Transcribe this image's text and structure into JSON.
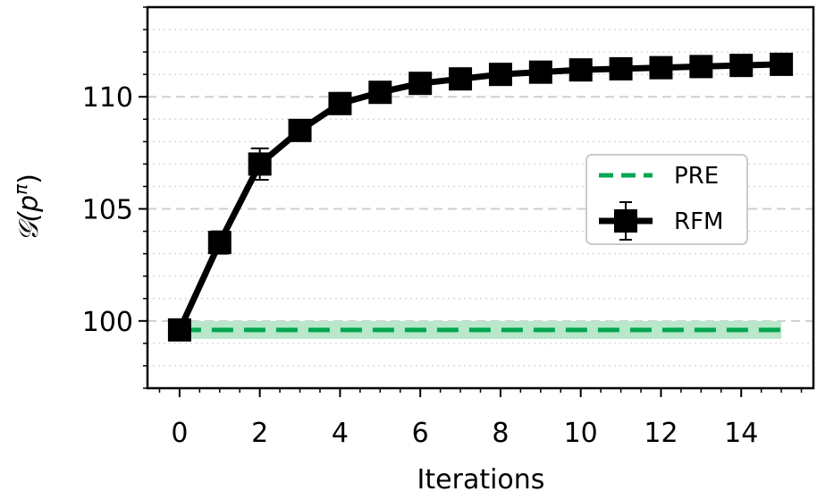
{
  "chart_data": {
    "type": "line",
    "xlabel": "Iterations",
    "ylabel": "𝒢(p^π)",
    "ylabel_main": "𝒢(p",
    "ylabel_sup": "π",
    "ylabel_close": ")",
    "xlim": [
      -0.8,
      15.8
    ],
    "ylim": [
      97,
      114
    ],
    "xticks": [
      0,
      2,
      4,
      6,
      8,
      10,
      12,
      14
    ],
    "xtick_labels": [
      "0",
      "2",
      "4",
      "6",
      "8",
      "10",
      "12",
      "14"
    ],
    "yticks": [
      100,
      105,
      110
    ],
    "ytick_labels": [
      "100",
      "105",
      "110"
    ],
    "grid": {
      "major_y": "dashed",
      "minor_y": "dotted"
    },
    "legend": {
      "placement": "center-right",
      "entries": [
        {
          "name": "PRE",
          "color": "#00a651",
          "style": "dashed"
        },
        {
          "name": "RFM",
          "color": "#000000",
          "style": "solid-square-markers"
        }
      ]
    },
    "series": [
      {
        "name": "RFM",
        "color": "#000000",
        "x": [
          0,
          1,
          2,
          3,
          4,
          5,
          6,
          7,
          8,
          9,
          10,
          11,
          12,
          13,
          14,
          15
        ],
        "y": [
          99.6,
          103.5,
          107.0,
          108.5,
          109.7,
          110.2,
          110.6,
          110.8,
          111.0,
          111.1,
          111.2,
          111.25,
          111.3,
          111.35,
          111.4,
          111.45
        ],
        "yerr": [
          0.15,
          0.5,
          0.7,
          0.3,
          0.2,
          0.15,
          0.15,
          0.1,
          0.1,
          0.1,
          0.1,
          0.1,
          0.1,
          0.1,
          0.1,
          0.1
        ]
      },
      {
        "name": "PRE",
        "color": "#00a651",
        "band_color": "#b8e8c9",
        "x": [
          0,
          15
        ],
        "y": [
          99.6,
          99.6
        ],
        "band": [
          99.2,
          100.0
        ]
      }
    ]
  }
}
